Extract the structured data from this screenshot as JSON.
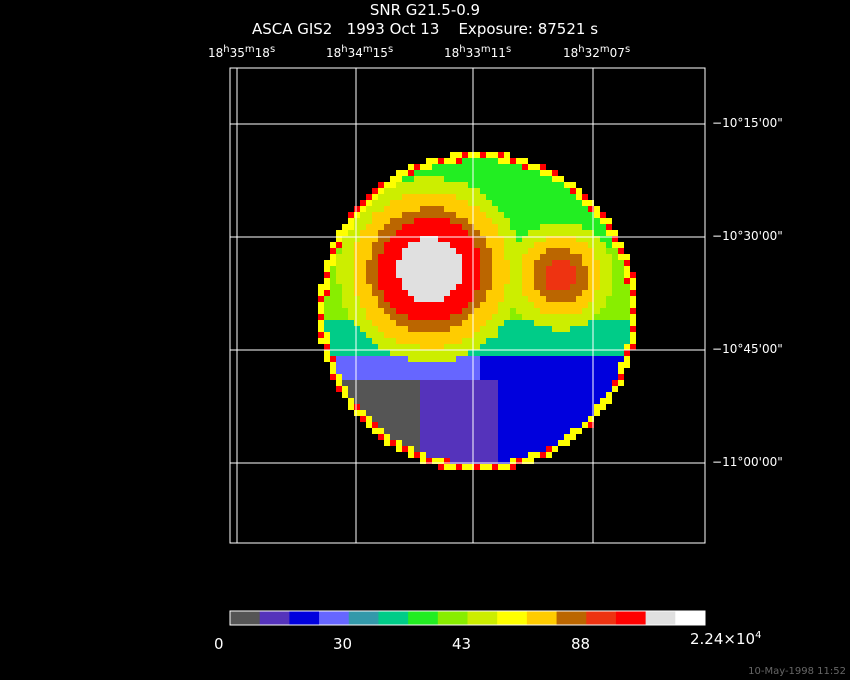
{
  "header": {
    "title": "SNR G21.5-0.9",
    "subtitle": "ASCA GIS2   1993 Oct 13    Exposure: 87521 s"
  },
  "ra_labels": [
    {
      "h": "18",
      "m": "35",
      "s": "18"
    },
    {
      "h": "18",
      "m": "34",
      "s": "15"
    },
    {
      "h": "18",
      "m": "33",
      "s": "11"
    },
    {
      "h": "18",
      "m": "32",
      "s": "07"
    }
  ],
  "dec_labels": [
    {
      "d": "10",
      "m": "15",
      "s": "00"
    },
    {
      "d": "10",
      "m": "30",
      "s": "00"
    },
    {
      "d": "10",
      "m": "45",
      "s": "00"
    },
    {
      "d": "11",
      "m": "00",
      "s": "00"
    }
  ],
  "colorbar": {
    "tick_labels": [
      "0",
      "30",
      "43",
      "88"
    ],
    "max_label": {
      "mant": "2.24×10",
      "exp": "4"
    },
    "colors": [
      "#555555",
      "#5533bb",
      "#0000dd",
      "#6666ff",
      "#3399aa",
      "#00cc88",
      "#22ee22",
      "#88ee00",
      "#ccee00",
      "#ffff00",
      "#ffcc00",
      "#bb6600",
      "#ee3311",
      "#ff0000",
      "#e0e0e0",
      "#ffffff"
    ]
  },
  "timestamp": "10-May-1998 11:52"
}
